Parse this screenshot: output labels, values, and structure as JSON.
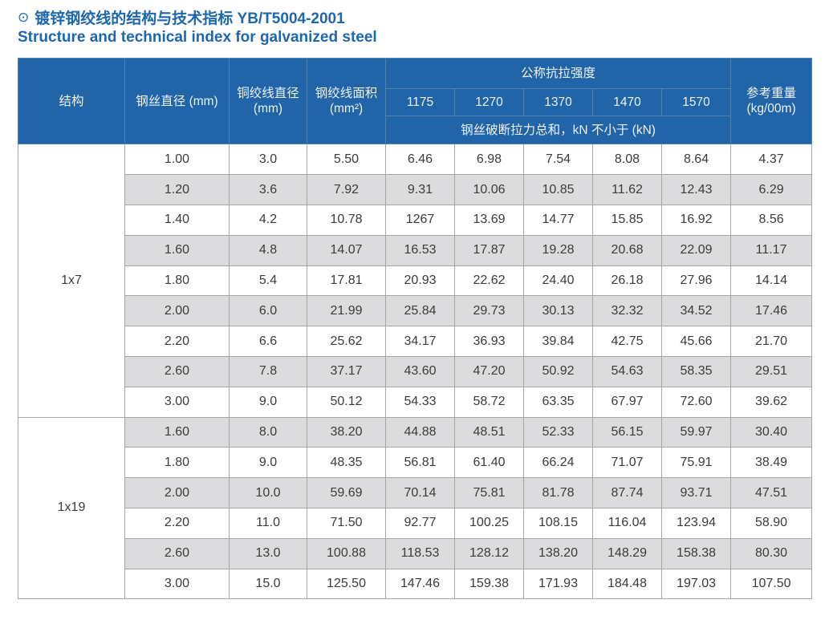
{
  "page": {
    "bullet_icon": "⊙",
    "title_zh": "镀锌钢绞线的结构与技术指标 YB/T5004-2001",
    "title_en": "Structure and technical index for galvanized steel"
  },
  "colors": {
    "title_blue": "#1c67ae",
    "header_blue": "#2164a7",
    "header_grid": "#4d82b8",
    "row_alt_gray": "#dcdcde",
    "row_white": "#ffffff",
    "grid_gray": "#a6a6a6",
    "text_dark": "#3b3b3b"
  },
  "table": {
    "headers": {
      "structure": "结构",
      "wire_diameter": "钢丝直径 (mm)",
      "strand_diameter_line1": "铜绞线直径",
      "strand_diameter_line2": "(mm)",
      "strand_area_line1": "钢绞线面积",
      "strand_area_line2": "(mm²)",
      "tensile_group": "公称抗拉强度",
      "tensile_grades": [
        "1175",
        "1270",
        "1370",
        "1470",
        "1570"
      ],
      "breaking_note": "钢丝破断拉力总和，kN 不小于 (kN)",
      "ref_weight_line1": "参考重量",
      "ref_weight_line2": "(kg/00m)"
    },
    "groups": [
      {
        "structure": "1x7",
        "rows": [
          [
            "1.00",
            "3.0",
            "5.50",
            "6.46",
            "6.98",
            "7.54",
            "8.08",
            "8.64",
            "4.37"
          ],
          [
            "1.20",
            "3.6",
            "7.92",
            "9.31",
            "10.06",
            "10.85",
            "11.62",
            "12.43",
            "6.29"
          ],
          [
            "1.40",
            "4.2",
            "10.78",
            "1267",
            "13.69",
            "14.77",
            "15.85",
            "16.92",
            "8.56"
          ],
          [
            "1.60",
            "4.8",
            "14.07",
            "16.53",
            "17.87",
            "19.28",
            "20.68",
            "22.09",
            "11.17"
          ],
          [
            "1.80",
            "5.4",
            "17.81",
            "20.93",
            "22.62",
            "24.40",
            "26.18",
            "27.96",
            "14.14"
          ],
          [
            "2.00",
            "6.0",
            "21.99",
            "25.84",
            "29.73",
            "30.13",
            "32.32",
            "34.52",
            "17.46"
          ],
          [
            "2.20",
            "6.6",
            "25.62",
            "34.17",
            "36.93",
            "39.84",
            "42.75",
            "45.66",
            "21.70"
          ],
          [
            "2.60",
            "7.8",
            "37.17",
            "43.60",
            "47.20",
            "50.92",
            "54.63",
            "58.35",
            "29.51"
          ],
          [
            "3.00",
            "9.0",
            "50.12",
            "54.33",
            "58.72",
            "63.35",
            "67.97",
            "72.60",
            "39.62"
          ]
        ]
      },
      {
        "structure": "1x19",
        "rows": [
          [
            "1.60",
            "8.0",
            "38.20",
            "44.88",
            "48.51",
            "52.33",
            "56.15",
            "59.97",
            "30.40"
          ],
          [
            "1.80",
            "9.0",
            "48.35",
            "56.81",
            "61.40",
            "66.24",
            "71.07",
            "75.91",
            "38.49"
          ],
          [
            "2.00",
            "10.0",
            "59.69",
            "70.14",
            "75.81",
            "81.78",
            "87.74",
            "93.71",
            "47.51"
          ],
          [
            "2.20",
            "11.0",
            "71.50",
            "92.77",
            "100.25",
            "108.15",
            "116.04",
            "123.94",
            "58.90"
          ],
          [
            "2.60",
            "13.0",
            "100.88",
            "118.53",
            "128.12",
            "138.20",
            "148.29",
            "158.38",
            "80.30"
          ],
          [
            "3.00",
            "15.0",
            "125.50",
            "147.46",
            "159.38",
            "171.93",
            "184.48",
            "197.03",
            "107.50"
          ]
        ]
      }
    ]
  }
}
